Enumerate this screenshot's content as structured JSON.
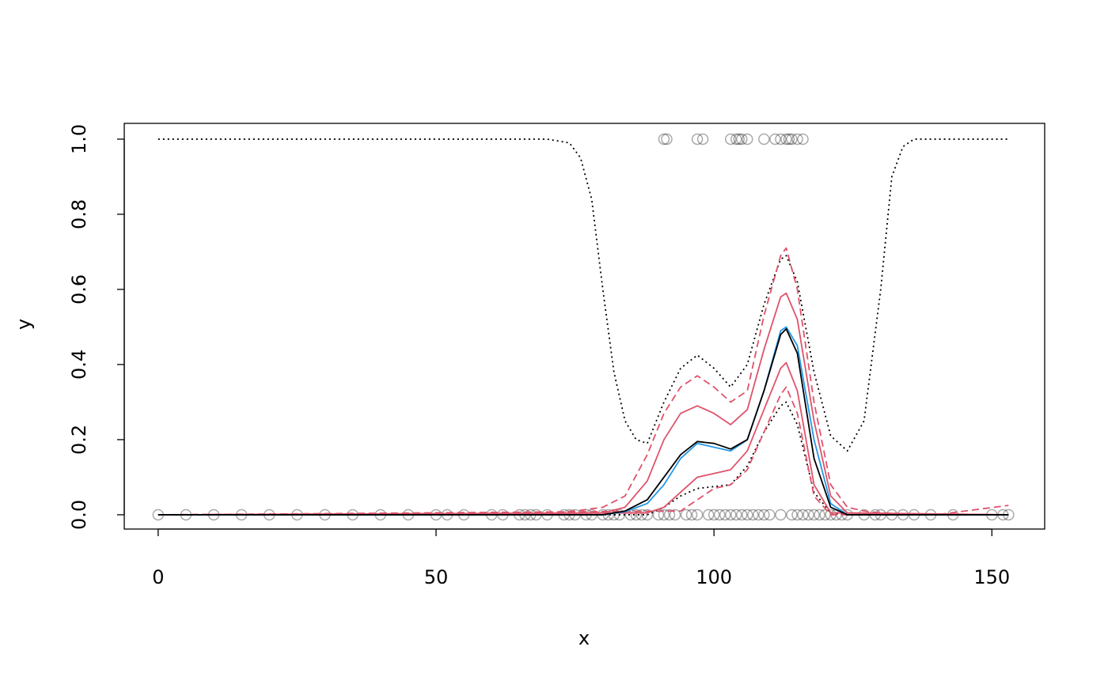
{
  "chart_data": {
    "type": "scatter",
    "xlabel": "x",
    "ylabel": "y",
    "xlim": [
      -6.1,
      159.5
    ],
    "ylim": [
      -0.038,
      1.042
    ],
    "xticks": [
      0,
      50,
      100,
      150
    ],
    "yticks": [
      {
        "value": 0,
        "label": "0.0"
      },
      {
        "value": 0.2,
        "label": "0.2"
      },
      {
        "value": 0.4,
        "label": "0.4"
      },
      {
        "value": 0.6,
        "label": "0.6"
      },
      {
        "value": 0.8,
        "label": "0.8"
      },
      {
        "value": 1,
        "label": "1.0"
      }
    ],
    "grid": false,
    "points": {
      "color": "#00000055",
      "x": [
        0,
        5,
        10,
        15,
        20,
        25,
        30,
        35,
        40,
        45,
        50,
        52,
        55,
        60,
        62,
        65,
        66,
        67,
        68,
        70,
        73,
        74,
        75,
        77,
        78,
        80,
        81,
        82,
        83,
        85,
        86,
        87,
        88,
        90,
        91,
        92,
        93,
        95,
        96,
        97,
        99,
        100,
        101,
        102,
        103,
        104,
        105,
        106,
        107,
        108,
        109,
        110,
        112,
        114,
        115,
        116,
        117,
        118,
        119,
        120,
        121,
        122,
        123,
        124,
        127,
        129,
        130,
        132,
        134,
        136,
        139,
        143,
        150,
        152,
        153,
        91,
        91.5,
        97,
        98,
        103,
        104,
        104.5,
        105,
        106,
        109,
        111,
        112,
        113,
        113.5,
        114,
        115,
        116
      ],
      "values": [
        0,
        0,
        0,
        0,
        0,
        0,
        0,
        0,
        0,
        0,
        0,
        0,
        0,
        0,
        0,
        0,
        0,
        0,
        0,
        0,
        0,
        0,
        0,
        0,
        0,
        0,
        0,
        0,
        0,
        0,
        0,
        0,
        0,
        0,
        0,
        0,
        0,
        0,
        0,
        0,
        0,
        0,
        0,
        0,
        0,
        0,
        0,
        0,
        0,
        0,
        0,
        0,
        0,
        0,
        0,
        0,
        0,
        0,
        0,
        0,
        0,
        0,
        0,
        0,
        0,
        0,
        0,
        0,
        0,
        0,
        0,
        0,
        0,
        0,
        0,
        1,
        1,
        1,
        1,
        1,
        1,
        1,
        1,
        1,
        1,
        1,
        1,
        1,
        1,
        1,
        1,
        1
      ]
    },
    "series": [
      {
        "color": "#000000",
        "dash": "dotted",
        "x": [
          0,
          70,
          74,
          76,
          78,
          80,
          82,
          84,
          86,
          88,
          91,
          94,
          97,
          100,
          103,
          106,
          109,
          112,
          113,
          115,
          118,
          121,
          124,
          127,
          130,
          132,
          134,
          136,
          153
        ],
        "values": [
          1,
          1,
          0.99,
          0.95,
          0.84,
          0.6,
          0.38,
          0.25,
          0.2,
          0.19,
          0.3,
          0.39,
          0.425,
          0.39,
          0.34,
          0.4,
          0.56,
          0.68,
          0.69,
          0.62,
          0.38,
          0.21,
          0.17,
          0.25,
          0.6,
          0.9,
          0.98,
          1,
          1
        ]
      },
      {
        "color": "#000000",
        "dash": "dotted",
        "x": [
          0,
          88,
          91,
          94,
          97,
          100,
          103,
          106,
          109,
          112,
          113,
          115,
          118,
          121,
          124,
          153
        ],
        "values": [
          0,
          0,
          0.02,
          0.05,
          0.07,
          0.075,
          0.08,
          0.13,
          0.22,
          0.29,
          0.3,
          0.24,
          0.06,
          0.005,
          0,
          0
        ]
      },
      {
        "color": "#df536b",
        "dash": "dashed",
        "x": [
          0,
          70,
          75,
          80,
          84,
          88,
          91,
          94,
          97,
          100,
          103,
          106,
          109,
          112,
          113,
          115,
          118,
          121,
          124,
          127,
          130,
          140,
          153
        ],
        "values": [
          0,
          0.005,
          0.01,
          0.02,
          0.05,
          0.16,
          0.27,
          0.34,
          0.37,
          0.34,
          0.3,
          0.33,
          0.53,
          0.69,
          0.71,
          0.6,
          0.3,
          0.08,
          0.02,
          0.01,
          0.005,
          0,
          0.025
        ]
      },
      {
        "color": "#df536b",
        "dash": "dashed",
        "x": [
          0,
          94,
          97,
          100,
          103,
          106,
          109,
          112,
          113,
          115,
          118,
          121,
          153
        ],
        "values": [
          0,
          0.01,
          0.04,
          0.07,
          0.08,
          0.12,
          0.22,
          0.32,
          0.34,
          0.27,
          0.05,
          0,
          0
        ]
      },
      {
        "color": "#df536b",
        "dash": "solid",
        "x": [
          0,
          80,
          84,
          88,
          91,
          94,
          97,
          100,
          103,
          106,
          109,
          112,
          113,
          115,
          118,
          121,
          124,
          153
        ],
        "values": [
          0,
          0.005,
          0.02,
          0.09,
          0.2,
          0.27,
          0.29,
          0.27,
          0.24,
          0.28,
          0.44,
          0.58,
          0.59,
          0.52,
          0.25,
          0.05,
          0.005,
          0
        ]
      },
      {
        "color": "#df536b",
        "dash": "solid",
        "x": [
          0,
          88,
          91,
          94,
          97,
          100,
          103,
          106,
          109,
          112,
          113,
          115,
          118,
          121,
          153
        ],
        "values": [
          0,
          0.005,
          0.02,
          0.06,
          0.1,
          0.11,
          0.12,
          0.17,
          0.28,
          0.39,
          0.405,
          0.33,
          0.08,
          0.005,
          0
        ]
      },
      {
        "color": "#2297e6",
        "dash": "solid",
        "x": [
          0,
          80,
          84,
          88,
          91,
          94,
          97,
          100,
          103,
          106,
          109,
          112,
          113,
          115,
          118,
          121,
          124,
          153
        ],
        "values": [
          0,
          0,
          0.008,
          0.03,
          0.08,
          0.15,
          0.19,
          0.18,
          0.17,
          0.2,
          0.33,
          0.49,
          0.5,
          0.45,
          0.2,
          0.03,
          0,
          0
        ]
      },
      {
        "color": "#000000",
        "dash": "solid",
        "x": [
          0,
          80,
          84,
          88,
          91,
          94,
          97,
          100,
          103,
          106,
          109,
          112,
          113,
          115,
          118,
          121,
          124,
          153
        ],
        "values": [
          0,
          0,
          0.01,
          0.04,
          0.1,
          0.16,
          0.195,
          0.19,
          0.175,
          0.2,
          0.33,
          0.48,
          0.495,
          0.43,
          0.15,
          0.02,
          0,
          0
        ]
      }
    ]
  }
}
